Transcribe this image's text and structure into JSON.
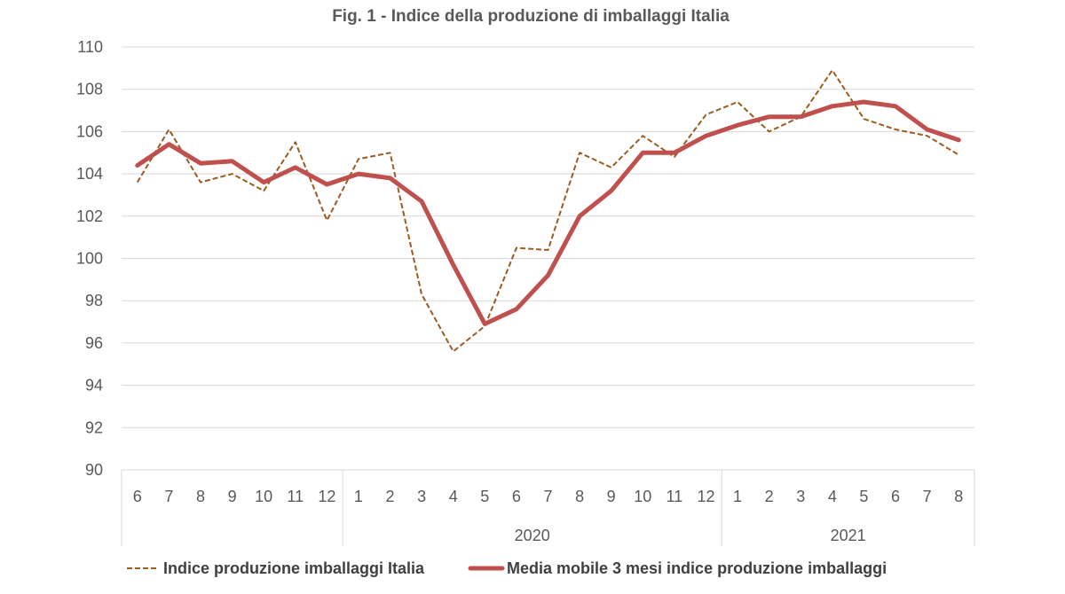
{
  "chart_data": {
    "type": "line",
    "title": "Fig. 1 - Indice della produzione di imballaggi Italia",
    "xlabel": "",
    "ylabel": "",
    "ylim": [
      90,
      110
    ],
    "yticks": [
      "90",
      "92",
      "94",
      "96",
      "98",
      "100",
      "102",
      "104",
      "106",
      "108",
      "110"
    ],
    "grid": true,
    "legend_position": "bottom",
    "categories": [
      "6",
      "7",
      "8",
      "9",
      "10",
      "11",
      "12",
      "1",
      "2",
      "3",
      "4",
      "5",
      "6",
      "7",
      "8",
      "9",
      "10",
      "11",
      "12",
      "1",
      "2",
      "3",
      "4",
      "5",
      "6",
      "7",
      "8"
    ],
    "year_groups": [
      {
        "label": "",
        "start": 0,
        "end": 6
      },
      {
        "label": "2020",
        "start": 7,
        "end": 18
      },
      {
        "label": "2021",
        "start": 19,
        "end": 26
      }
    ],
    "series": [
      {
        "name": "Indice produzione imballaggi Italia",
        "color": "#9C5B1F",
        "style": "dashed",
        "values": [
          103.6,
          106.1,
          103.6,
          104.0,
          103.2,
          105.5,
          101.8,
          104.7,
          105.0,
          98.3,
          95.6,
          96.8,
          100.5,
          100.4,
          105.0,
          104.3,
          105.8,
          104.8,
          106.8,
          107.4,
          106.0,
          106.7,
          108.9,
          106.6,
          106.1,
          105.8,
          104.9
        ]
      },
      {
        "name": "Media mobile 3 mesi indice produzione imballaggi",
        "color": "#C0504D",
        "style": "solid",
        "values": [
          104.4,
          105.4,
          104.5,
          104.6,
          103.6,
          104.3,
          103.5,
          104.0,
          103.8,
          102.7,
          99.7,
          96.9,
          97.6,
          99.2,
          102.0,
          103.2,
          105.0,
          105.0,
          105.8,
          106.3,
          106.7,
          106.7,
          107.2,
          107.4,
          107.2,
          106.1,
          105.6
        ]
      }
    ]
  }
}
